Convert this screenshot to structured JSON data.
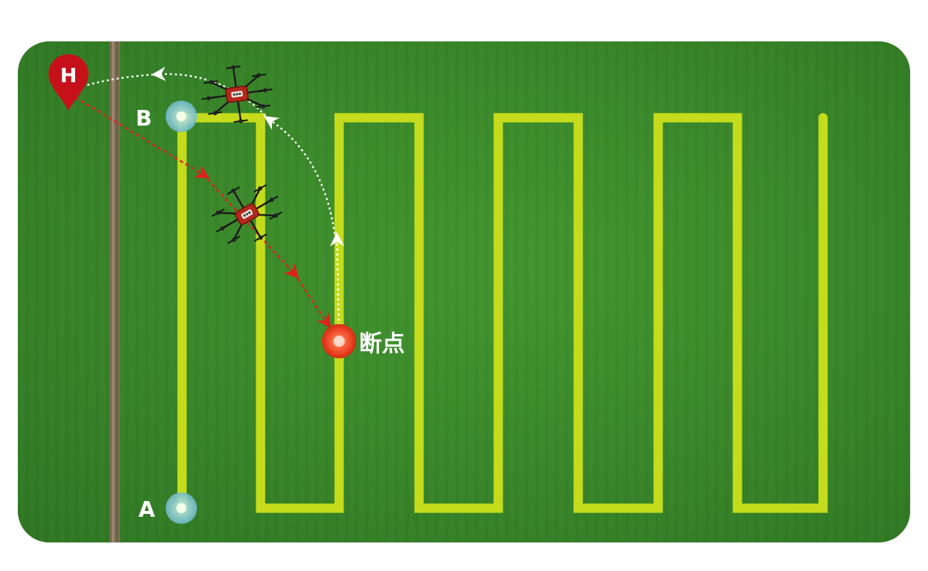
{
  "labels": {
    "home": "H",
    "point_a": "A",
    "point_b": "B",
    "breakpoint": "断点"
  },
  "colors": {
    "field_base": "#3f8f2f",
    "route": "#c4dc1c",
    "home_pin": "#c7111a",
    "breakpoint": "#e63214",
    "waypoint": "#7fc8d8",
    "return_path": "#e0201a",
    "resume_path": "#ffffff",
    "drone_body": "#b5281c"
  },
  "icons": {
    "home": "map-pin-icon",
    "drone": "drone-icon"
  }
}
